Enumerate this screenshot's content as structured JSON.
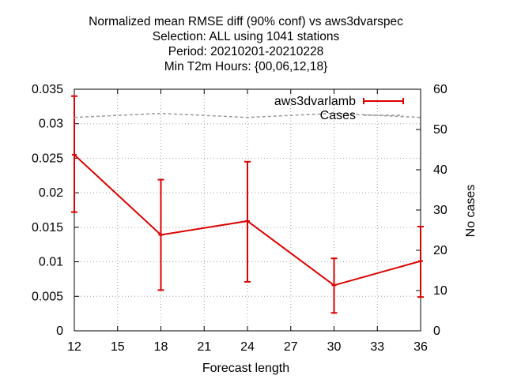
{
  "chart_data": {
    "type": "line",
    "title_lines": [
      "Normalized mean RMSE diff (90% conf) vs aws3dvarspec",
      "Selection: ALL using  1041 stations",
      "Period: 20210201-20210228",
      "Min T2m   Hours: {00,06,12,18}"
    ],
    "xlabel": "Forecast length",
    "ylabel": "",
    "y2label": "No cases",
    "xlim": [
      12,
      36
    ],
    "ylim": [
      0,
      0.035
    ],
    "y2lim": [
      0,
      60
    ],
    "xticks": [
      "12",
      "15",
      "18",
      "21",
      "24",
      "27",
      "30",
      "33",
      "36"
    ],
    "yticks": [
      "0",
      "0.005",
      "0.01",
      "0.015",
      "0.02",
      "0.025",
      "0.03",
      "0.035"
    ],
    "y2ticks": [
      "0",
      "10",
      "20",
      "30",
      "40",
      "50",
      "60"
    ],
    "grid": true,
    "legend_position": "top-right",
    "series": [
      {
        "name": "aws3dvarlamb",
        "color": "#dd0000",
        "axis": "y",
        "x": [
          12,
          18,
          24,
          30,
          36
        ],
        "values": [
          0.0255,
          0.0139,
          0.0159,
          0.0066,
          0.0101
        ],
        "err_low": [
          0.0172,
          0.0059,
          0.0071,
          0.0026,
          0.0049
        ],
        "err_high": [
          0.034,
          0.0219,
          0.0245,
          0.0105,
          0.0151
        ]
      },
      {
        "name": "Cases",
        "color": "#999999",
        "axis": "y2",
        "style": "dashed",
        "x": [
          12,
          18,
          24,
          30,
          36
        ],
        "values": [
          53,
          54,
          53,
          54,
          53
        ]
      }
    ]
  }
}
